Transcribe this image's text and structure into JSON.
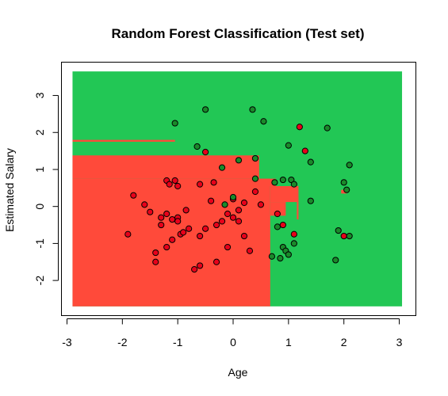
{
  "chart_data": {
    "type": "scatter",
    "title": "Random Forest Classification (Test set)",
    "xlabel": "Age",
    "ylabel": "Estimated Salary",
    "xlim": [
      -3.1,
      3.3
    ],
    "ylim": [
      -2.95,
      3.9
    ],
    "xticks": [
      -3,
      -2,
      -1,
      0,
      1,
      2,
      3
    ],
    "yticks": [
      -2,
      -1,
      0,
      1,
      2,
      3
    ],
    "grid": false,
    "colors": {
      "region_0": "#ff4a3a",
      "region_1": "#22c755",
      "point_0": "#e8001a",
      "point_1": "#1a8a2a",
      "point_edge": "#000000"
    },
    "background_extent": {
      "x": [
        -2.9,
        3.05
      ],
      "y": [
        -2.7,
        3.65
      ]
    },
    "regions_class_0": [
      [
        -2.9,
        -2.7,
        0.67,
        0.75
      ],
      [
        -2.9,
        0.75,
        0.47,
        1.38
      ],
      [
        -2.9,
        1.75,
        -1.05,
        1.8
      ],
      [
        -1.05,
        0.75,
        -0.25,
        1.17
      ],
      [
        -0.25,
        0.78,
        0.15,
        1.1
      ],
      [
        0.47,
        0.55,
        0.77,
        0.75
      ],
      [
        0.67,
        0.12,
        1.18,
        0.55
      ],
      [
        0.67,
        -0.25,
        0.95,
        0.12
      ],
      [
        1.15,
        -0.35,
        1.18,
        0.25
      ],
      [
        1.95,
        0.35,
        2.05,
        0.45
      ]
    ],
    "series": [
      {
        "class": 0,
        "points": [
          [
            -1.9,
            -0.75
          ],
          [
            -1.8,
            0.3
          ],
          [
            -1.6,
            0.05
          ],
          [
            -1.5,
            -0.15
          ],
          [
            -1.4,
            -1.5
          ],
          [
            -1.4,
            -1.25
          ],
          [
            -1.3,
            -0.3
          ],
          [
            -1.3,
            -0.5
          ],
          [
            -1.2,
            -1.1
          ],
          [
            -1.2,
            0.7
          ],
          [
            -1.15,
            0.6
          ],
          [
            -1.1,
            -0.35
          ],
          [
            -1.1,
            -0.9
          ],
          [
            -1.05,
            0.7
          ],
          [
            -1.0,
            0.55
          ],
          [
            -1.0,
            -0.3
          ],
          [
            -0.95,
            -0.75
          ],
          [
            -0.9,
            -0.7
          ],
          [
            -0.85,
            -0.1
          ],
          [
            -0.8,
            -0.6
          ],
          [
            -0.7,
            -1.7
          ],
          [
            -0.6,
            -1.6
          ],
          [
            -0.6,
            -0.8
          ],
          [
            -0.5,
            -0.6
          ],
          [
            -0.4,
            0.15
          ],
          [
            -0.3,
            -0.5
          ],
          [
            -0.3,
            -1.5
          ],
          [
            -0.2,
            -0.4
          ],
          [
            -0.1,
            -1.1
          ],
          [
            0.0,
            0.2
          ],
          [
            0.0,
            -0.3
          ],
          [
            0.1,
            -0.4
          ],
          [
            0.1,
            -0.1
          ],
          [
            0.2,
            -0.8
          ],
          [
            0.3,
            -1.2
          ],
          [
            0.4,
            0.4
          ],
          [
            0.8,
            -0.2
          ],
          [
            0.9,
            -0.5
          ],
          [
            -1.2,
            -0.2
          ],
          [
            -1.0,
            -0.4
          ],
          [
            0.2,
            0.1
          ],
          [
            -0.35,
            0.65
          ],
          [
            -0.6,
            0.6
          ],
          [
            -0.5,
            1.47
          ],
          [
            1.2,
            2.15
          ],
          [
            1.3,
            1.5
          ],
          [
            1.1,
            -0.75
          ],
          [
            2.0,
            -0.8
          ],
          [
            0.5,
            0.05
          ],
          [
            -0.1,
            -0.2
          ]
        ]
      },
      {
        "class": 1,
        "points": [
          [
            -1.05,
            2.25
          ],
          [
            -0.65,
            1.62
          ],
          [
            -0.5,
            2.62
          ],
          [
            0.35,
            2.62
          ],
          [
            0.55,
            2.3
          ],
          [
            1.0,
            1.65
          ],
          [
            1.7,
            2.12
          ],
          [
            -0.2,
            1.05
          ],
          [
            0.1,
            1.25
          ],
          [
            0.4,
            1.3
          ],
          [
            0.75,
            0.65
          ],
          [
            0.9,
            0.72
          ],
          [
            1.05,
            0.72
          ],
          [
            1.4,
            1.2
          ],
          [
            2.1,
            1.12
          ],
          [
            2.0,
            0.65
          ],
          [
            2.05,
            0.45
          ],
          [
            0.4,
            0.75
          ],
          [
            1.1,
            0.6
          ],
          [
            0.7,
            -1.35
          ],
          [
            0.8,
            -0.55
          ],
          [
            0.85,
            -1.4
          ],
          [
            0.9,
            -1.1
          ],
          [
            0.95,
            -1.2
          ],
          [
            1.0,
            -1.3
          ],
          [
            1.1,
            -1.0
          ],
          [
            1.85,
            -1.45
          ],
          [
            1.9,
            -0.65
          ],
          [
            2.1,
            -0.8
          ],
          [
            1.4,
            0.15
          ],
          [
            0.0,
            0.25
          ],
          [
            -0.15,
            0.05
          ]
        ]
      }
    ]
  }
}
